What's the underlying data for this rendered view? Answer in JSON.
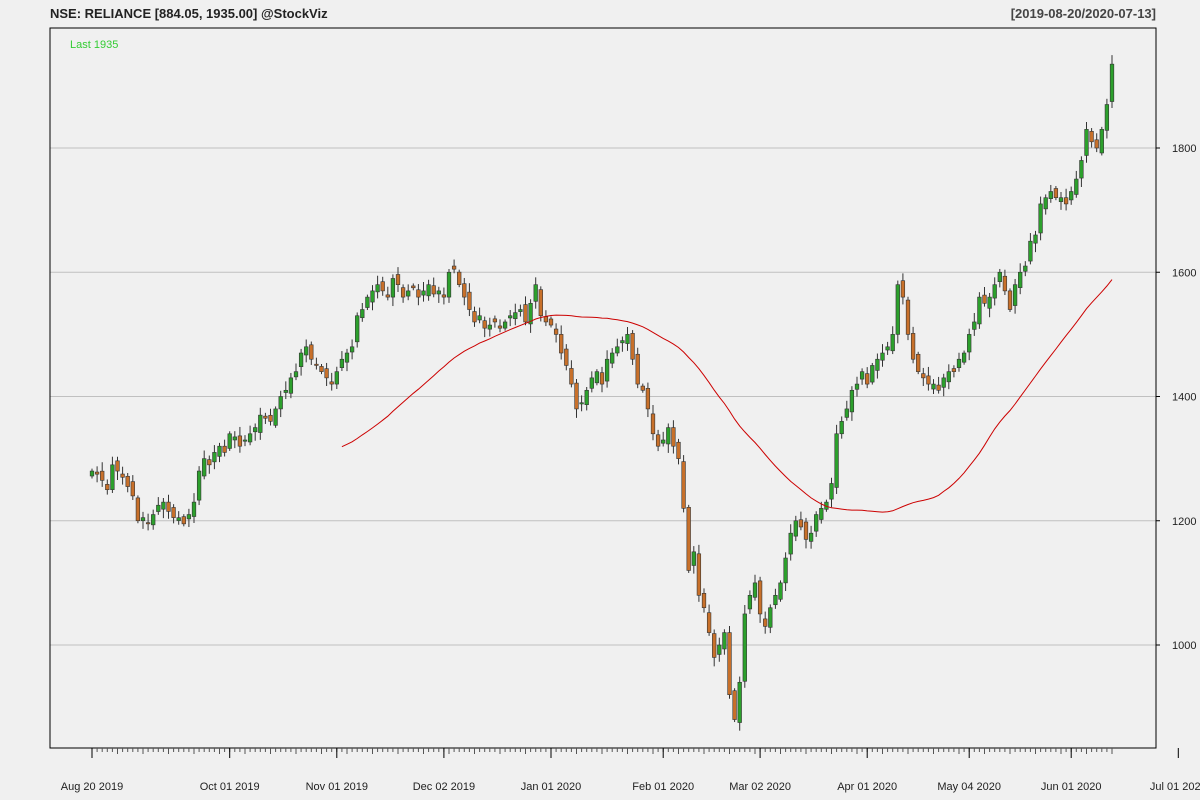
{
  "header": {
    "title": "NSE: RELIANCE [884.05, 1935.00] @StockViz",
    "date_range": "[2019-08-20/2020-07-13]"
  },
  "colors": {
    "up": "#2ca02c",
    "down": "#c8702a",
    "ma": "#cc0000",
    "last_label": "#33cc33",
    "grid": "#c0c0c0",
    "border": "#000000"
  },
  "chart_data": {
    "type": "candlestick",
    "title": "NSE: RELIANCE [884.05, 1935.00] @StockViz",
    "last_label": "Last 1935",
    "y_ticks": [
      1000,
      1200,
      1400,
      1600,
      1800
    ],
    "ylim": [
      880,
      1960
    ],
    "x_tick_labels": [
      "Aug 20 2019",
      "Oct 01 2019",
      "Nov 01 2019",
      "Dec 02 2019",
      "Jan 01 2020",
      "Feb 01 2020",
      "Mar 02 2020",
      "Apr 01 2020",
      "May 04 2020",
      "Jun 01 2020",
      "Jul 01 2020"
    ],
    "x_tick_sessions": [
      0,
      27,
      48,
      69,
      90,
      112,
      131,
      152,
      172,
      192,
      213
    ],
    "ma_start_session": 49,
    "ma_window": 50,
    "closes": [
      1280,
      1275,
      1265,
      1250,
      1290,
      1280,
      1270,
      1255,
      1240,
      1200,
      1205,
      1195,
      1210,
      1225,
      1230,
      1215,
      1205,
      1205,
      1195,
      1210,
      1230,
      1280,
      1300,
      1290,
      1310,
      1320,
      1310,
      1340,
      1335,
      1320,
      1330,
      1340,
      1350,
      1370,
      1365,
      1360,
      1380,
      1400,
      1410,
      1430,
      1440,
      1470,
      1480,
      1460,
      1450,
      1440,
      1430,
      1420,
      1440,
      1460,
      1470,
      1480,
      1530,
      1540,
      1560,
      1570,
      1580,
      1570,
      1560,
      1590,
      1580,
      1560,
      1570,
      1575,
      1560,
      1570,
      1580,
      1565,
      1570,
      1560,
      1600,
      1605,
      1580,
      1560,
      1540,
      1520,
      1530,
      1510,
      1515,
      1520,
      1510,
      1520,
      1530,
      1535,
      1540,
      1520,
      1550,
      1580,
      1530,
      1520,
      1515,
      1500,
      1470,
      1450,
      1420,
      1380,
      1390,
      1410,
      1430,
      1440,
      1420,
      1460,
      1470,
      1480,
      1490,
      1500,
      1460,
      1420,
      1410,
      1380,
      1340,
      1320,
      1330,
      1350,
      1320,
      1300,
      1220,
      1120,
      1150,
      1080,
      1060,
      1020,
      980,
      1000,
      1020,
      920,
      880,
      940,
      1050,
      1080,
      1100,
      1050,
      1030,
      1060,
      1080,
      1100,
      1140,
      1180,
      1200,
      1190,
      1170,
      1180,
      1210,
      1220,
      1230,
      1260,
      1340,
      1360,
      1380,
      1410,
      1420,
      1440,
      1420,
      1450,
      1460,
      1470,
      1480,
      1500,
      1580,
      1560,
      1500,
      1460,
      1440,
      1430,
      1420,
      1420,
      1410,
      1430,
      1440,
      1440,
      1460,
      1470,
      1500,
      1520,
      1560,
      1550,
      1560,
      1580,
      1600,
      1570,
      1540,
      1580,
      1600,
      1610,
      1650,
      1660,
      1710,
      1720,
      1730,
      1720,
      1720,
      1710,
      1730,
      1750,
      1780,
      1830,
      1810,
      1800,
      1830,
      1870,
      1935
    ]
  }
}
